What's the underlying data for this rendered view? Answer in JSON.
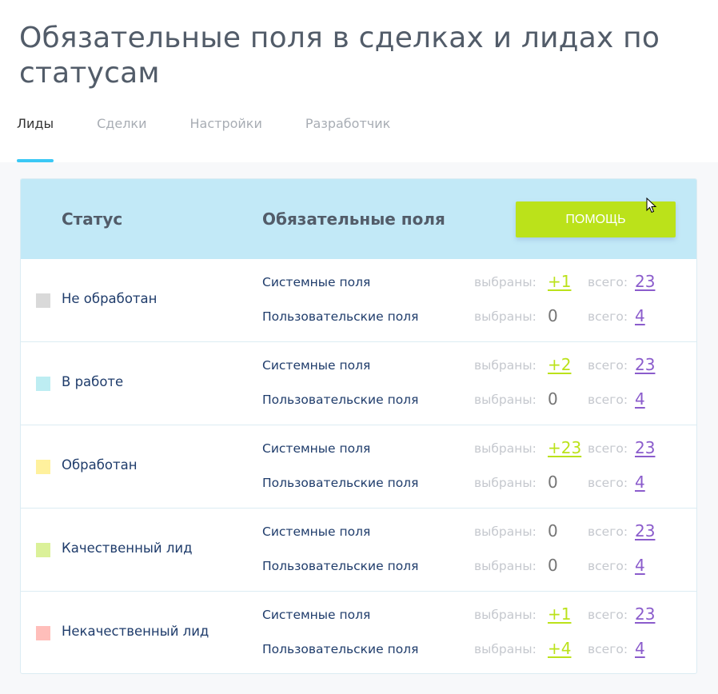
{
  "page": {
    "title": "Обязательные поля в сделках и лидах по статусам"
  },
  "tabs": [
    {
      "label": "Лиды",
      "active": true
    },
    {
      "label": "Сделки",
      "active": false
    },
    {
      "label": "Настройки",
      "active": false
    },
    {
      "label": "Разработчик",
      "active": false
    }
  ],
  "table": {
    "header": {
      "status": "Статус",
      "fields": "Обязательные поля",
      "help_button": "ПОМОЩЬ"
    },
    "labels": {
      "system": "Системные поля",
      "custom": "Пользовательские поля",
      "selected": "выбраны:",
      "total": "всего:"
    },
    "rows": [
      {
        "status": "Не обработан",
        "color": "#d9d9d9",
        "system": {
          "selected": "+1",
          "total": "23"
        },
        "custom": {
          "selected": "0",
          "total": "4"
        }
      },
      {
        "status": "В работе",
        "color": "#bdedf2",
        "system": {
          "selected": "+2",
          "total": "23"
        },
        "custom": {
          "selected": "0",
          "total": "4"
        }
      },
      {
        "status": "Обработан",
        "color": "#fff19d",
        "system": {
          "selected": "+23",
          "total": "23"
        },
        "custom": {
          "selected": "0",
          "total": "4"
        }
      },
      {
        "status": "Качественный лид",
        "color": "#dbf199",
        "system": {
          "selected": "0",
          "total": "23"
        },
        "custom": {
          "selected": "0",
          "total": "4"
        }
      },
      {
        "status": "Некачественный лид",
        "color": "#ffbeba",
        "system": {
          "selected": "+1",
          "total": "23"
        },
        "custom": {
          "selected": "+4",
          "total": "4"
        }
      }
    ]
  },
  "colors": {
    "accent_green": "#bbe21a",
    "accent_blue": "#3bc8f5",
    "link_purple": "#8b5ccc",
    "header_bg": "#c2e9f7"
  }
}
